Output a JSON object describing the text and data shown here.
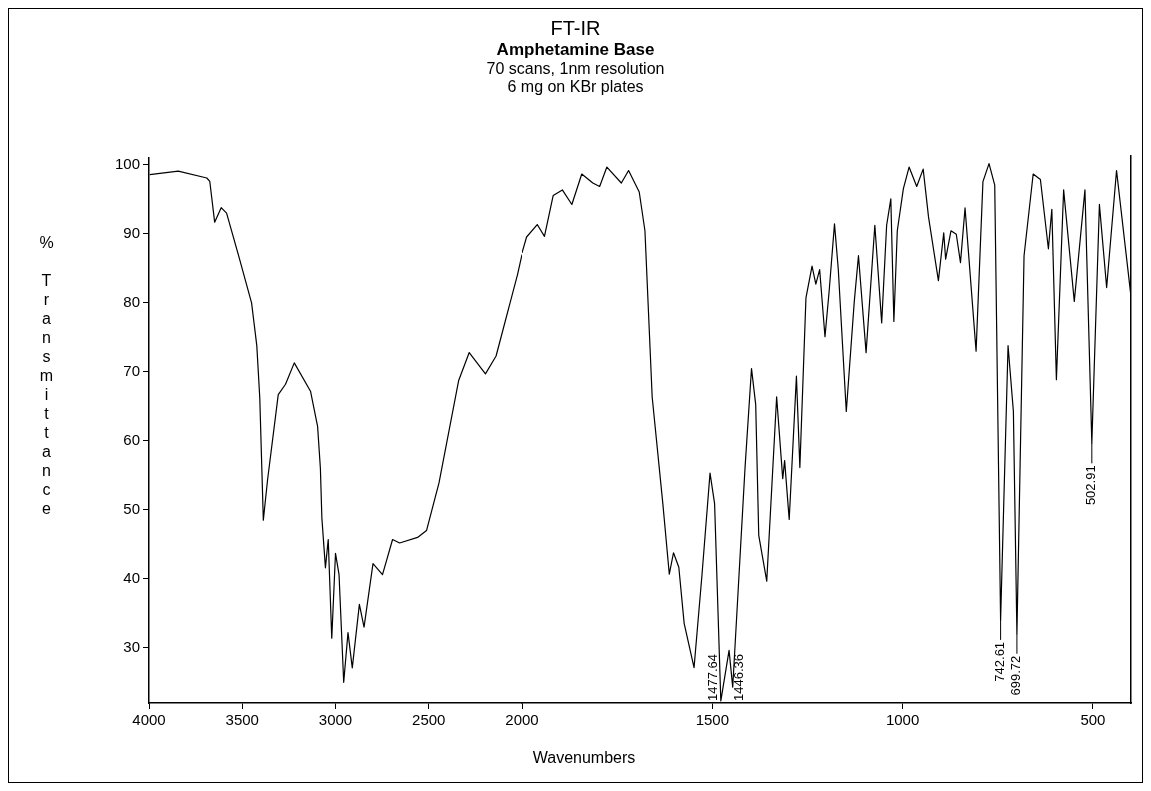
{
  "chart_data": [
    {
      "type": "line",
      "ylabel": "% Transmittance",
      "xlim": [
        4000,
        2000
      ],
      "xticks": [
        4000,
        3500,
        3000,
        2500,
        2000
      ],
      "ylim": [
        22,
        101
      ],
      "yticks": [
        30,
        40,
        50,
        60,
        70,
        80,
        90,
        100
      ],
      "legend": false,
      "marker": "none",
      "line_style": "solid",
      "series": [
        {
          "color": "#000000",
          "x": [
            3996,
            3843,
            3690,
            3674,
            3648,
            3613,
            3584,
            3517,
            3450,
            3422,
            3406,
            3387,
            3364,
            3307,
            3268,
            3221,
            3134,
            3096,
            3081,
            3073,
            3054,
            3039,
            3020,
            3000,
            2981,
            2956,
            2933,
            2910,
            2872,
            2847,
            2799,
            2748,
            2694,
            2656,
            2560,
            2512,
            2445,
            2340,
            2283,
            2196,
            2139,
            2024,
            2000
          ],
          "values": [
            98.6,
            99.1,
            98.1,
            97.6,
            91.7,
            93.8,
            93,
            86.6,
            80,
            73.8,
            66.2,
            48.5,
            54.4,
            66.7,
            68.2,
            71.3,
            67.2,
            62.1,
            56,
            48.8,
            41.6,
            45.7,
            31.4,
            43.7,
            40.6,
            25,
            32.2,
            27.1,
            36.3,
            33,
            42.2,
            40.6,
            45.7,
            45.2,
            46,
            47,
            53.9,
            68.7,
            72.8,
            69.7,
            72.3,
            84.1,
            87
          ]
        }
      ]
    },
    {
      "type": "line",
      "title": "FT-IR",
      "subtitle": "Amphetamine Base",
      "xlabel": "Wavenumbers",
      "annotations": [
        "70 scans, 1nm resolution",
        "6 mg on KBr plates",
        {
          "text": "1477.64",
          "x": 1477.64,
          "y": 22.3
        },
        {
          "text": "1446.36",
          "x": 1446.36,
          "y": 24.3
        },
        {
          "text": "742.61",
          "x": 742.61,
          "y": 34
        },
        {
          "text": "699.72",
          "x": 699.72,
          "y": 32
        },
        {
          "text": "502.91",
          "x": 502.91,
          "y": 59.5
        }
      ],
      "xlim": [
        2000,
        400
      ],
      "xticks": [
        1500,
        1000,
        500
      ],
      "ylim": [
        22,
        101
      ],
      "tick_labels": "x",
      "legend": false,
      "marker": "none",
      "line_style": "solid",
      "series": [
        {
          "color": "#000000",
          "x": [
            2000,
            1988,
            1960,
            1941,
            1918,
            1894,
            1869,
            1843,
            1814,
            1796,
            1777,
            1739,
            1720,
            1692,
            1677,
            1658,
            1630,
            1613,
            1602,
            1588,
            1574,
            1548,
            1527,
            1506,
            1494,
            1477.64,
            1456,
            1446.36,
            1414,
            1397,
            1386,
            1378,
            1357,
            1331,
            1315,
            1310,
            1298,
            1279,
            1270,
            1254,
            1238,
            1228,
            1218,
            1204,
            1193,
            1179,
            1169,
            1148,
            1127,
            1116,
            1096,
            1073,
            1055,
            1042,
            1031,
            1023,
            1014,
            998,
            983,
            963,
            946,
            932,
            906,
            892,
            887,
            873,
            859,
            848,
            836,
            807,
            789,
            773,
            758,
            742.61,
            723,
            709,
            699.72,
            681,
            657,
            638,
            617,
            608,
            596,
            577,
            549,
            521,
            502.91,
            483,
            464,
            438,
            413,
            400
          ],
          "values": [
            87,
            89.3,
            91.1,
            89.4,
            95.3,
            96.1,
            94,
            98.4,
            97.1,
            96.6,
            99.4,
            97.1,
            98.9,
            95.8,
            90.2,
            66.2,
            50.8,
            40.6,
            43.7,
            41.6,
            33.5,
            27.1,
            40.6,
            55.2,
            50.8,
            22.3,
            29.6,
            24.3,
            56,
            70.3,
            65.1,
            46.2,
            39.6,
            66.2,
            54.4,
            57,
            48.5,
            69.2,
            56,
            80.5,
            85.1,
            82.5,
            84.6,
            74.9,
            81.5,
            91.2,
            84.6,
            64.1,
            80,
            86.6,
            72.6,
            91,
            76.9,
            91,
            94.8,
            77.1,
            90.2,
            96.3,
            99.4,
            96.6,
            99.1,
            92.2,
            83,
            89.9,
            86.1,
            90.2,
            89.7,
            85.6,
            93.5,
            72.8,
            97.3,
            99.9,
            96.8,
            34,
            73.6,
            64.1,
            32,
            86.6,
            98.4,
            97.6,
            87.6,
            93.3,
            68.7,
            96.1,
            80,
            96.1,
            59.5,
            94,
            82,
            98.9,
            86.9,
            80.7
          ]
        }
      ]
    }
  ]
}
